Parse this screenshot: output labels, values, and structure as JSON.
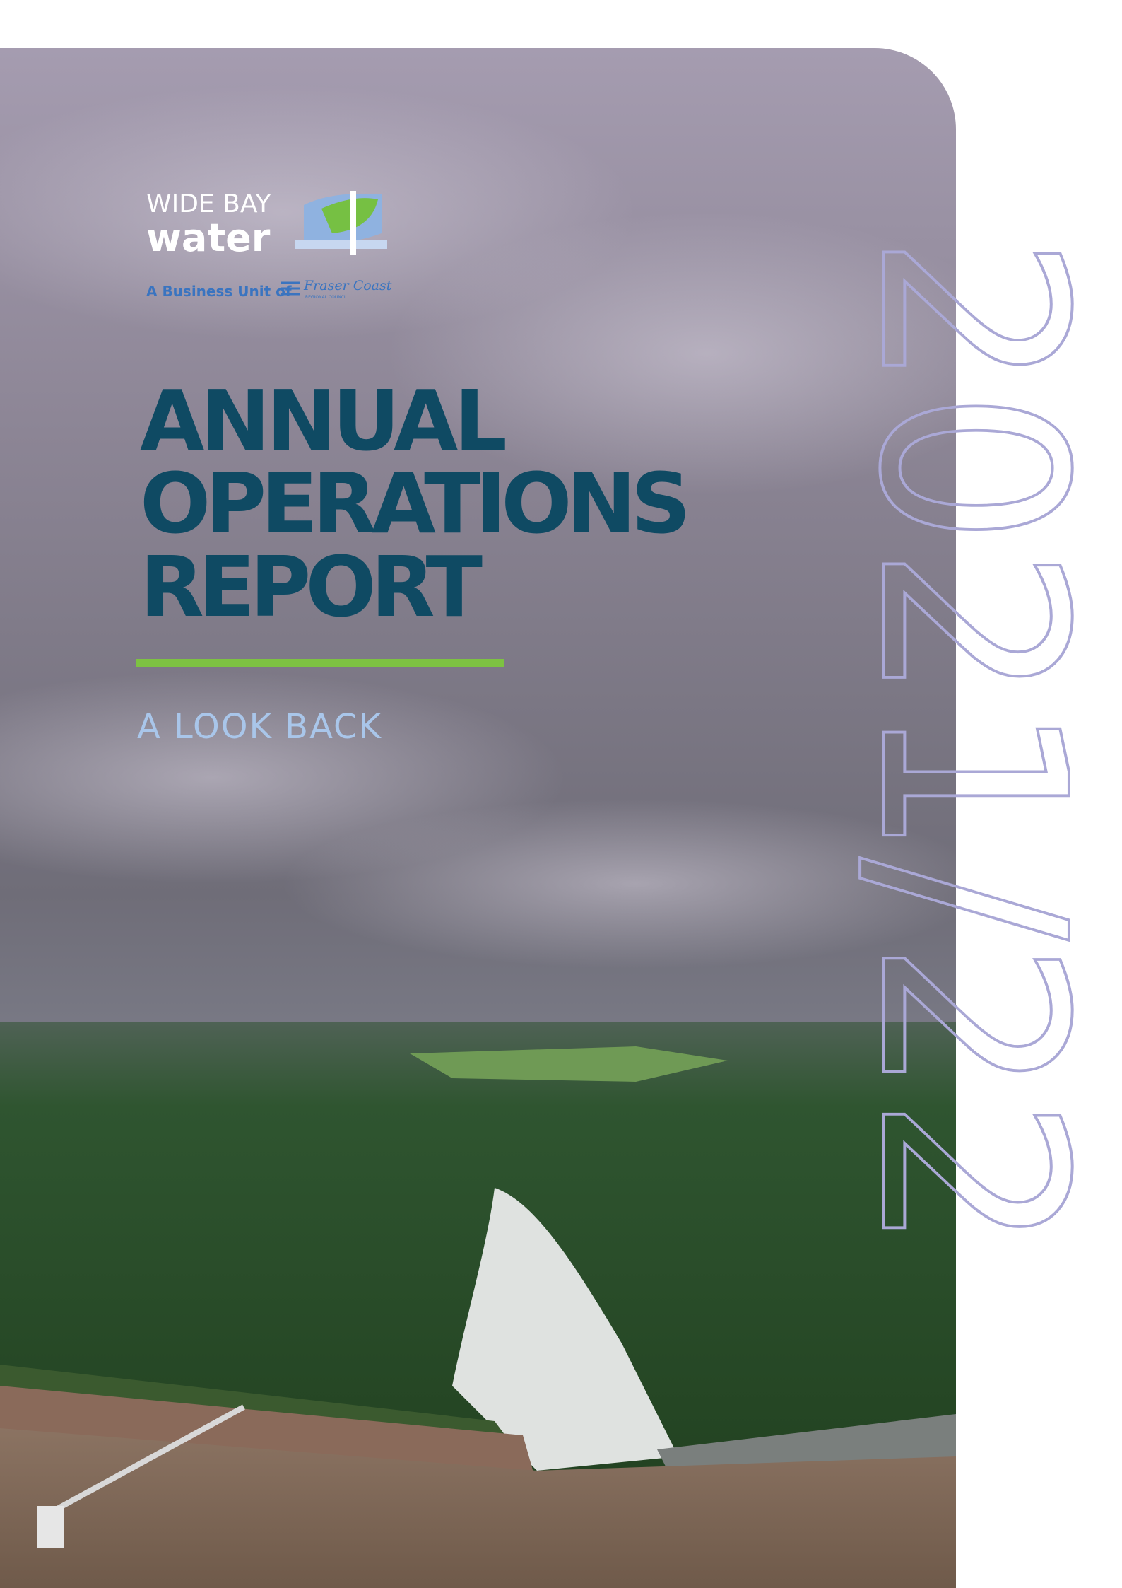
{
  "brand": {
    "line1": "WIDE BAY",
    "line2": "water",
    "business_unit": "A Business Unit of",
    "council_name": "Fraser Coast",
    "council_sub": "REGIONAL COUNCIL"
  },
  "title": {
    "lines": [
      "ANNUAL",
      "OPERATIONS",
      "REPORT"
    ]
  },
  "subtitle": "A LOOK BACK",
  "year": "2021/22"
}
